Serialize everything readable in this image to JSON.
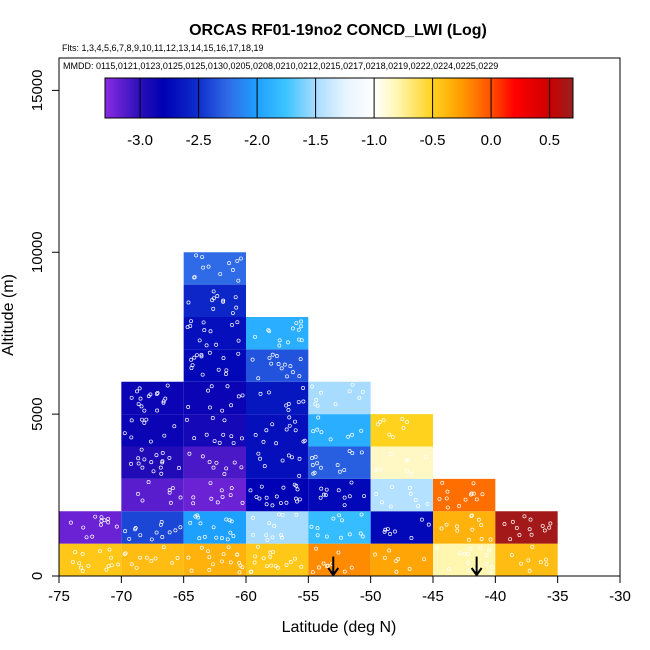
{
  "chart_data": {
    "type": "heatmap",
    "title": "ORCAS RF01-19no2 CONCD_LWI (Log)",
    "flights_label": "Flts: 1,3,4,5,6,7,8,9,10,11,12,13,14,15,16,17,18,19",
    "dates_label": "MMDD: 0115,0121,0123,0125,0125,0130,0205,0208,0210,0212,0215,0217,0218,0219,0222,0224,0225,0229",
    "xlabel": "Latitude (deg N)",
    "ylabel": "Altitude (m)",
    "xlim": [
      -75,
      -30
    ],
    "ylim": [
      0,
      16000
    ],
    "xticks": [
      -75,
      -70,
      -65,
      -60,
      -55,
      -50,
      -45,
      -40,
      -35,
      -30
    ],
    "yticks": [
      0,
      5000,
      10000,
      15000
    ],
    "colorbar": {
      "min": -3.3,
      "max": 0.7,
      "ticks": [
        -3.0,
        -2.5,
        -2.0,
        -1.5,
        -1.0,
        -0.5,
        0.0,
        0.5
      ],
      "tick_labels": [
        "-3.0",
        "-2.5",
        "-2.0",
        "-1.5",
        "-1.0",
        "-0.5",
        "0.0",
        "0.5"
      ],
      "stops": [
        {
          "v": -3.3,
          "c": "#8a2be2"
        },
        {
          "v": -3.0,
          "c": "#2a0fb8"
        },
        {
          "v": -2.8,
          "c": "#0000b4"
        },
        {
          "v": -2.5,
          "c": "#0e2ecc"
        },
        {
          "v": -2.25,
          "c": "#2f6be6"
        },
        {
          "v": -2.0,
          "c": "#1ea0ff"
        },
        {
          "v": -1.75,
          "c": "#3cc4ff"
        },
        {
          "v": -1.5,
          "c": "#a8dcff"
        },
        {
          "v": -1.25,
          "c": "#e6f4ff"
        },
        {
          "v": -1.0,
          "c": "#ffffff"
        },
        {
          "v": -0.8,
          "c": "#fff6b0"
        },
        {
          "v": -0.5,
          "c": "#ffd21e"
        },
        {
          "v": -0.25,
          "c": "#ff9b00"
        },
        {
          "v": 0.0,
          "c": "#ff5000"
        },
        {
          "v": 0.2,
          "c": "#ff0000"
        },
        {
          "v": 0.5,
          "c": "#cc0000"
        },
        {
          "v": 0.7,
          "c": "#962020"
        }
      ]
    },
    "bin_width_deg": 5,
    "bin_height_m": 1000,
    "cells": [
      {
        "lat": -75,
        "alt": 0,
        "v": -0.45
      },
      {
        "lat": -75,
        "alt": 1000,
        "v": -3.2
      },
      {
        "lat": -70,
        "alt": 0,
        "v": -0.4
      },
      {
        "lat": -70,
        "alt": 1000,
        "v": -2.4
      },
      {
        "lat": -70,
        "alt": 2000,
        "v": -3.15
      },
      {
        "lat": -70,
        "alt": 3000,
        "v": -2.95
      },
      {
        "lat": -70,
        "alt": 4000,
        "v": -2.85
      },
      {
        "lat": -70,
        "alt": 5000,
        "v": -2.85
      },
      {
        "lat": -65,
        "alt": 0,
        "v": -0.35
      },
      {
        "lat": -65,
        "alt": 1000,
        "v": -2.0
      },
      {
        "lat": -65,
        "alt": 2000,
        "v": -3.2
      },
      {
        "lat": -65,
        "alt": 3000,
        "v": -3.1
      },
      {
        "lat": -65,
        "alt": 4000,
        "v": -2.9
      },
      {
        "lat": -65,
        "alt": 5000,
        "v": -2.85
      },
      {
        "lat": -65,
        "alt": 6000,
        "v": -2.75
      },
      {
        "lat": -65,
        "alt": 7000,
        "v": -2.7
      },
      {
        "lat": -65,
        "alt": 8000,
        "v": -2.55
      },
      {
        "lat": -65,
        "alt": 9000,
        "v": -2.25
      },
      {
        "lat": -60,
        "alt": 0,
        "v": -0.45
      },
      {
        "lat": -60,
        "alt": 1000,
        "v": -1.5
      },
      {
        "lat": -60,
        "alt": 2000,
        "v": -2.8
      },
      {
        "lat": -60,
        "alt": 3000,
        "v": -2.7
      },
      {
        "lat": -60,
        "alt": 4000,
        "v": -2.7
      },
      {
        "lat": -60,
        "alt": 5000,
        "v": -2.65
      },
      {
        "lat": -60,
        "alt": 6000,
        "v": -2.35
      },
      {
        "lat": -60,
        "alt": 7000,
        "v": -1.9
      },
      {
        "lat": -55,
        "alt": 0,
        "v": -0.2
      },
      {
        "lat": -55,
        "alt": 1000,
        "v": -1.8
      },
      {
        "lat": -55,
        "alt": 2000,
        "v": -2.75
      },
      {
        "lat": -55,
        "alt": 3000,
        "v": -2.3
      },
      {
        "lat": -55,
        "alt": 4000,
        "v": -1.9
      },
      {
        "lat": -55,
        "alt": 5000,
        "v": -1.5
      },
      {
        "lat": -50,
        "alt": 0,
        "v": -0.3
      },
      {
        "lat": -50,
        "alt": 1000,
        "v": -2.75
      },
      {
        "lat": -50,
        "alt": 2000,
        "v": -1.45
      },
      {
        "lat": -50,
        "alt": 3000,
        "v": -0.85
      },
      {
        "lat": -50,
        "alt": 4000,
        "v": -0.5
      },
      {
        "lat": -45,
        "alt": 0,
        "v": -0.8
      },
      {
        "lat": -45,
        "alt": 1000,
        "v": -0.35
      },
      {
        "lat": -45,
        "alt": 2000,
        "v": -0.1
      },
      {
        "lat": -40,
        "alt": 0,
        "v": -0.4
      },
      {
        "lat": -40,
        "alt": 1000,
        "v": 0.65
      }
    ],
    "arrows": [
      {
        "lat": -53,
        "alt_top": 600,
        "alt_bottom": 0
      },
      {
        "lat": -41.5,
        "alt_top": 600,
        "alt_bottom": 0
      }
    ]
  },
  "point_color": "#ffffff"
}
